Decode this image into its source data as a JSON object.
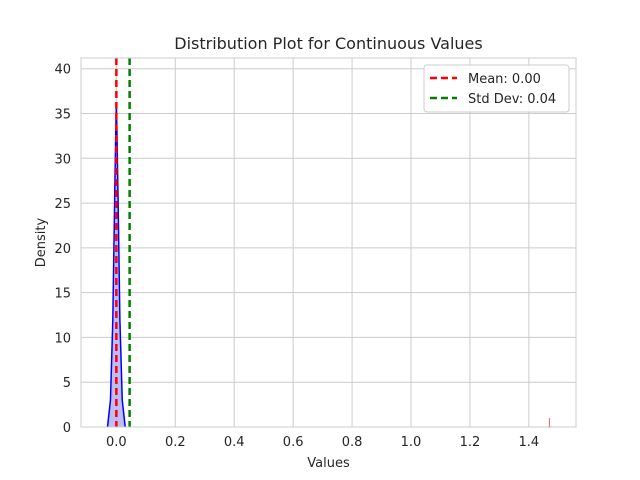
{
  "chart_data": {
    "type": "area",
    "title": "Distribution Plot for Continuous Values",
    "xlabel": "Values",
    "ylabel": "Density",
    "xlim": [
      -0.12,
      1.56
    ],
    "ylim": [
      0,
      41.2
    ],
    "xticks": [
      0.0,
      0.2,
      0.4,
      0.6,
      0.8,
      1.0,
      1.2,
      1.4
    ],
    "xtick_labels": [
      "0.0",
      "0.2",
      "0.4",
      "0.6",
      "0.8",
      "1.0",
      "1.2",
      "1.4"
    ],
    "yticks": [
      0,
      5,
      10,
      15,
      20,
      25,
      30,
      35,
      40
    ],
    "ytick_labels": [
      "0",
      "5",
      "10",
      "15",
      "20",
      "25",
      "30",
      "35",
      "40"
    ],
    "grid": true,
    "legend_position": "top-right",
    "kde": {
      "x": [
        -0.03,
        -0.02,
        -0.012,
        -0.006,
        -0.002,
        0.0,
        0.002,
        0.006,
        0.012,
        0.02,
        0.03
      ],
      "y": [
        0,
        3,
        12,
        25,
        33,
        36,
        33,
        25,
        12,
        3,
        0
      ],
      "color": "#0000ff",
      "fill": "#b3b3f5"
    },
    "outlier_spike": {
      "x": 1.47,
      "height": 1.0,
      "color": "#e57373"
    },
    "series": [
      {
        "name": "Mean: 0.00",
        "value": 0.0,
        "color": "#ff0000",
        "style": "dashed"
      },
      {
        "name": "Std Dev: 0.04",
        "value": 0.045,
        "color": "#008000",
        "style": "dashed"
      }
    ]
  }
}
